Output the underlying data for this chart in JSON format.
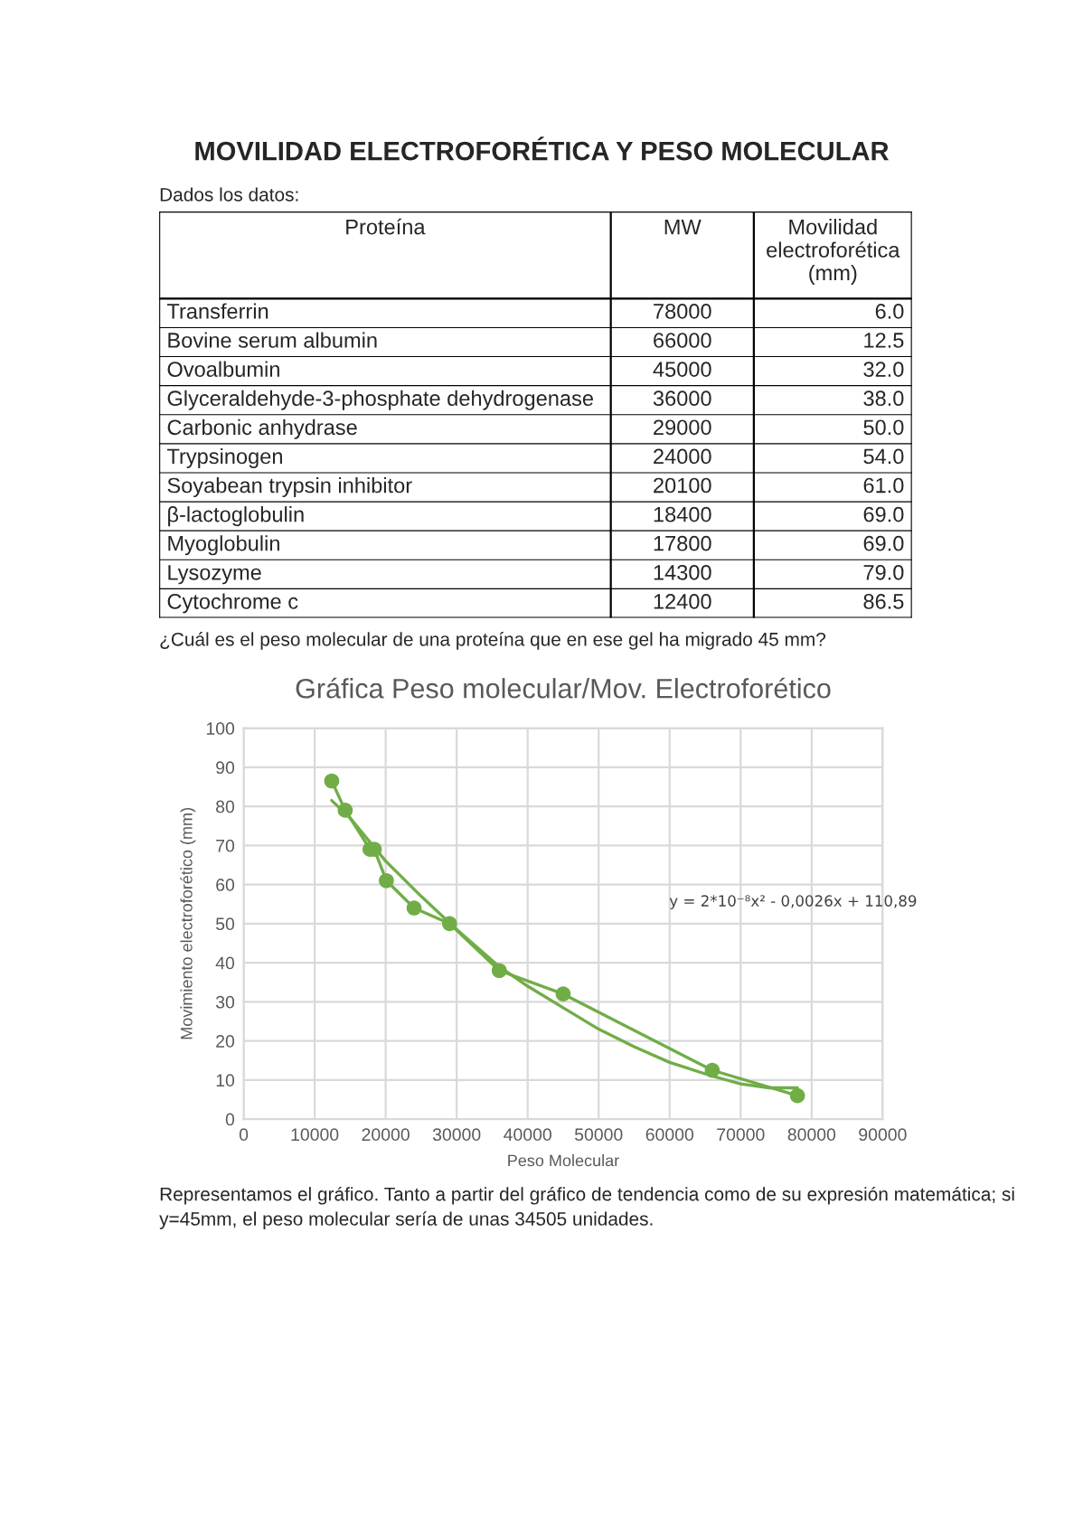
{
  "chart_data": [
    {
      "type": "other",
      "title": "MOVILIDAD ELECTROFORÉTICA Y PESO MOLECULAR",
      "subtitle": "Dados los datos:",
      "xlabel": "Proteína",
      "categories": [
        "Transferrin",
        "Bovine serum albumin",
        "Ovoalbumin",
        "Glyceraldehyde-3-phosphate dehydrogenase",
        "Carbonic anhydrase",
        "Trypsinogen",
        "Soyabean trypsin inhibitor",
        "β-lactoglobulin",
        "Myoglobulin",
        "Lysozyme",
        "Cytochrome c"
      ],
      "series": [
        {
          "name": "MW",
          "values": [
            78000,
            66000,
            45000,
            36000,
            29000,
            24000,
            20100,
            18400,
            17800,
            14300,
            12400
          ]
        },
        {
          "name": "Movilidad electroforética (mm)",
          "values": [
            6.0,
            12.5,
            32.0,
            38.0,
            50.0,
            54.0,
            61.0,
            69.0,
            69.0,
            79.0,
            86.5
          ],
          "value_labels": [
            "6.0",
            "12.5",
            "32.0",
            "38.0",
            "50.0",
            "54.0",
            "61.0",
            "69.0",
            "69.0",
            "79.0",
            "86.5"
          ]
        }
      ],
      "data_labels": true,
      "annotations": [
        "¿Cuál es el peso molecular de una proteína que en ese gel ha migrado 45 mm?"
      ]
    },
    {
      "type": "line",
      "title": "Gráfica Peso molecular/Mov. Electroforético",
      "xlabel": "Peso Molecular",
      "ylabel": "Movimiento electroforético (mm)",
      "series": [
        {
          "type": "line",
          "color": "#70ad47",
          "marker": "circle",
          "x": [
            78000,
            66000,
            45000,
            36000,
            29000,
            24000,
            20100,
            18400,
            17800,
            14300,
            12400
          ],
          "values": [
            6.0,
            12.5,
            32.0,
            38.0,
            50.0,
            54.0,
            61.0,
            69.0,
            69.0,
            79.0,
            86.5
          ]
        },
        {
          "type": "line",
          "color": "#70ad47",
          "marker": "none",
          "x": [
            12400,
            15000,
            20000,
            25000,
            30000,
            36000,
            40000,
            45000,
            50000,
            55000,
            60000,
            66000,
            70000,
            74000,
            78000
          ],
          "values": [
            81.5,
            77,
            66,
            57,
            48.5,
            39,
            34,
            28.5,
            23,
            18.5,
            14.5,
            11,
            9,
            8,
            8
          ]
        }
      ],
      "xlim": [
        0,
        90000
      ],
      "xticks": [
        0,
        10000,
        20000,
        30000,
        40000,
        50000,
        60000,
        70000,
        80000,
        90000
      ],
      "ylim": [
        0,
        100
      ],
      "yticks": [
        0,
        10,
        20,
        30,
        40,
        50,
        60,
        70,
        80,
        90,
        100
      ],
      "grid": true,
      "line_style": "solid",
      "annotations": [
        "y = 2*10⁻⁸x² - 0,0026x + 110,89",
        "Representamos el gráfico. Tanto a partir del gráfico de tendencia como de su expresión matemática; si y=45mm, el peso molecular sería de unas 34505 unidades."
      ]
    }
  ]
}
